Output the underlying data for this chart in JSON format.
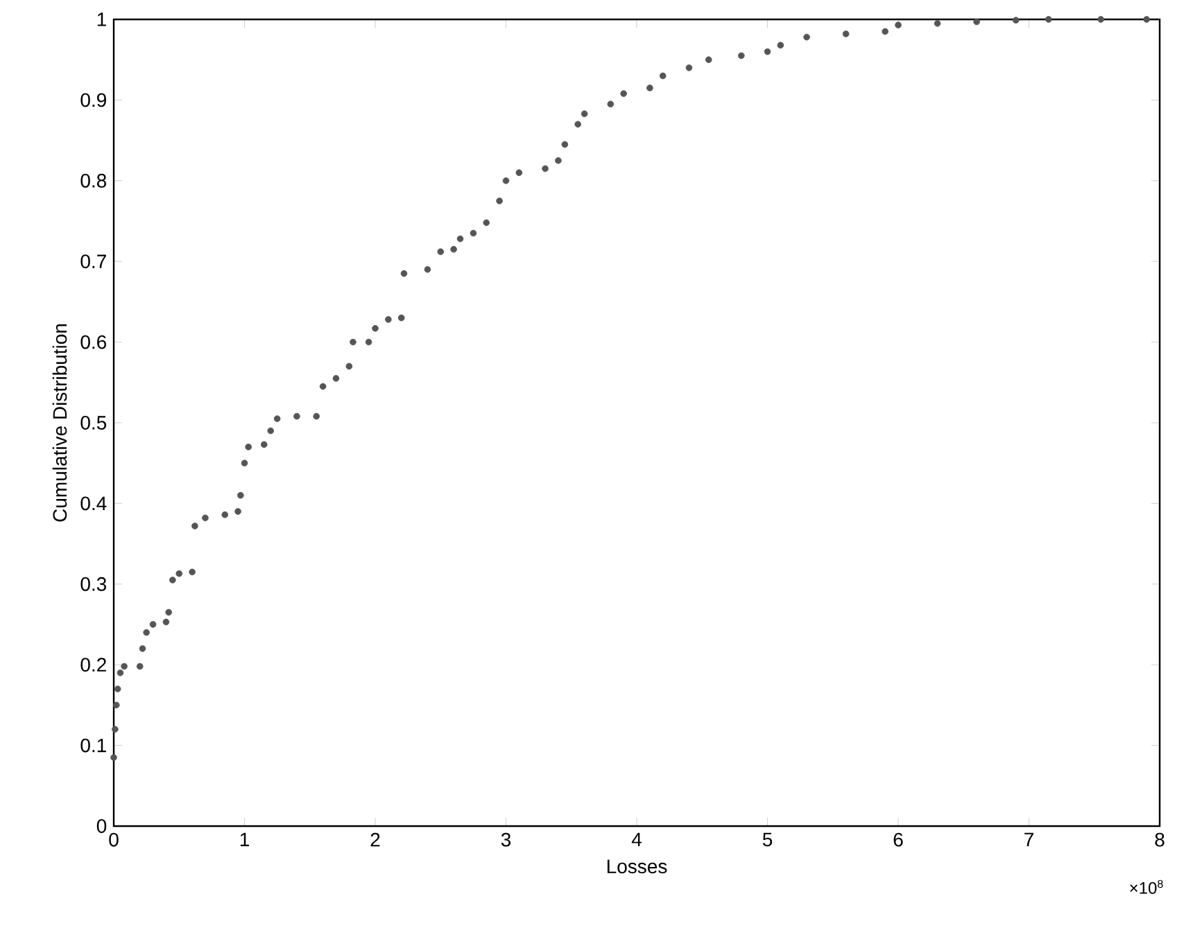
{
  "chart_data": {
    "type": "scatter",
    "xlabel": "Losses",
    "ylabel": "Cumulative Distribution",
    "annotations": [
      "×10$^{8}$"
    ],
    "x": [
      0.0,
      0.01,
      0.02,
      0.03,
      0.05,
      0.08,
      0.2,
      0.22,
      0.25,
      0.3,
      0.4,
      0.42,
      0.45,
      0.5,
      0.6,
      0.62,
      0.7,
      0.85,
      0.95,
      0.97,
      1.0,
      1.03,
      1.15,
      1.2,
      1.25,
      1.4,
      1.55,
      1.6,
      1.7,
      1.8,
      1.83,
      1.95,
      2.0,
      2.1,
      2.2,
      2.22,
      2.4,
      2.5,
      2.6,
      2.65,
      2.75,
      2.85,
      2.95,
      3.0,
      3.1,
      3.3,
      3.4,
      3.45,
      3.55,
      3.6,
      3.8,
      3.9,
      4.1,
      4.2,
      4.4,
      4.55,
      4.8,
      5.0,
      5.1,
      5.3,
      5.6,
      5.9,
      6.0,
      6.3,
      6.6,
      6.9,
      7.15,
      7.55,
      7.9
    ],
    "values": [
      0.085,
      0.12,
      0.15,
      0.17,
      0.19,
      0.198,
      0.198,
      0.22,
      0.24,
      0.25,
      0.253,
      0.265,
      0.305,
      0.313,
      0.315,
      0.372,
      0.382,
      0.386,
      0.39,
      0.41,
      0.45,
      0.47,
      0.473,
      0.49,
      0.505,
      0.508,
      0.508,
      0.545,
      0.555,
      0.57,
      0.6,
      0.6,
      0.617,
      0.628,
      0.63,
      0.685,
      0.69,
      0.712,
      0.715,
      0.728,
      0.735,
      0.748,
      0.775,
      0.8,
      0.81,
      0.815,
      0.825,
      0.845,
      0.87,
      0.883,
      0.895,
      0.908,
      0.915,
      0.93,
      0.94,
      0.95,
      0.955,
      0.96,
      0.968,
      0.978,
      0.982,
      0.985,
      0.993,
      0.995,
      0.997,
      0.999,
      1.0,
      1.0,
      1.0
    ],
    "color": "#555555",
    "xlim": [
      0,
      8
    ],
    "xticks": [
      0,
      1,
      2,
      3,
      4,
      5,
      6,
      7,
      8
    ],
    "ylim": [
      0,
      1
    ],
    "yticks": [
      0,
      0.1,
      0.2,
      0.3,
      0.4,
      0.5,
      0.6,
      0.7,
      0.8,
      0.9,
      1
    ],
    "grid": false
  }
}
